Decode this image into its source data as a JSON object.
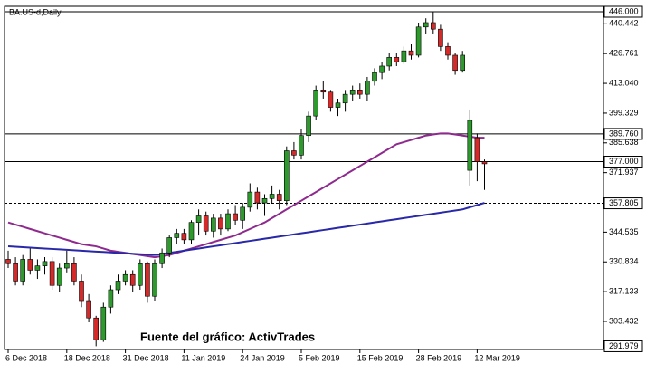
{
  "chart_data": {
    "type": "candlestick",
    "title": "BA.US-d,Daily",
    "annotation": "Fuente del gráfico: ActivTrades",
    "categories": [
      "6 Dec 2018",
      null,
      null,
      null,
      null,
      null,
      null,
      null,
      "18 Dec 2018",
      null,
      null,
      null,
      null,
      null,
      null,
      null,
      "31 Dec 2018",
      null,
      null,
      null,
      null,
      null,
      null,
      null,
      "11 Jan 2019",
      null,
      null,
      null,
      null,
      null,
      null,
      null,
      "24 Jan 2019",
      null,
      null,
      null,
      null,
      null,
      null,
      null,
      "5 Feb 2019",
      null,
      null,
      null,
      null,
      null,
      null,
      null,
      "15 Feb 2019",
      null,
      null,
      null,
      null,
      null,
      null,
      null,
      "28 Feb 2019",
      null,
      null,
      null,
      null,
      null,
      null,
      null,
      "12 Mar 2019",
      null
    ],
    "open": [
      332,
      330,
      322,
      332,
      327,
      329,
      331,
      320,
      328,
      330,
      322,
      313,
      305,
      295,
      310,
      318,
      322,
      325,
      320,
      330,
      315,
      330,
      335,
      342,
      344,
      341,
      349,
      352,
      345,
      351,
      346,
      353,
      350,
      356,
      363,
      358,
      360,
      362,
      359,
      382,
      380,
      389,
      398,
      410,
      409,
      402,
      404,
      408,
      410,
      408,
      414,
      418,
      421,
      425,
      423,
      428,
      426,
      439,
      441,
      438,
      430,
      426,
      419,
      373,
      388,
      377
    ],
    "high": [
      336,
      333,
      334,
      337,
      332,
      333,
      333,
      330,
      336,
      333,
      325,
      316,
      306,
      312,
      320,
      325,
      327,
      327,
      332,
      331,
      332,
      337,
      343,
      346,
      346,
      350,
      355,
      354,
      353,
      353,
      355,
      357,
      358,
      367,
      365,
      362,
      366,
      364,
      384,
      386,
      392,
      400,
      412,
      414,
      410,
      406,
      410,
      412,
      413,
      416,
      420,
      423,
      427,
      427,
      430,
      431,
      441,
      443,
      446,
      440,
      432,
      427,
      428,
      401,
      390,
      378
    ],
    "low": [
      328,
      320,
      320,
      325,
      323,
      325,
      318,
      317,
      326,
      320,
      310,
      303,
      292,
      294,
      307,
      316,
      320,
      317,
      318,
      312,
      313,
      328,
      333,
      339,
      339,
      339,
      343,
      343,
      342,
      343,
      345,
      348,
      346,
      354,
      355,
      352,
      358,
      355,
      357,
      378,
      378,
      386,
      396,
      406,
      400,
      398,
      400,
      405,
      406,
      405,
      412,
      415,
      419,
      421,
      422,
      424,
      425,
      436,
      436,
      428,
      424,
      417,
      418,
      366,
      368,
      364
    ],
    "close": [
      330,
      322,
      332,
      327,
      329,
      331,
      320,
      328,
      330,
      322,
      313,
      305,
      295,
      310,
      318,
      322,
      325,
      320,
      330,
      315,
      330,
      335,
      342,
      344,
      341,
      349,
      352,
      345,
      351,
      346,
      353,
      350,
      356,
      363,
      358,
      360,
      362,
      359,
      382,
      380,
      389,
      398,
      410,
      409,
      402,
      404,
      408,
      410,
      408,
      414,
      418,
      421,
      425,
      423,
      428,
      426,
      439,
      441,
      438,
      430,
      426,
      419,
      426,
      396,
      377,
      376
    ],
    "up_color": "#2e9a2e",
    "down_color": "#d42a2a",
    "lines": [
      {
        "color": "#8e2a8e",
        "values": [
          349,
          348,
          347,
          346,
          345,
          344,
          343,
          342,
          341,
          340,
          339,
          338.5,
          338,
          337,
          336,
          335.5,
          335,
          334.5,
          334,
          333.5,
          333,
          333.5,
          334,
          335,
          336,
          337,
          338,
          339,
          340,
          341,
          342,
          343,
          344.5,
          346,
          347.5,
          349,
          351,
          353,
          355,
          357,
          359,
          361,
          363,
          365,
          367,
          369,
          371,
          373,
          375,
          377,
          379,
          381,
          383,
          385,
          386,
          387,
          388,
          389,
          389.5,
          390,
          390,
          389.5,
          389,
          388.5,
          388,
          388
        ]
      },
      {
        "color": "#2828a8",
        "values": [
          338,
          337.8,
          337.6,
          337.4,
          337.2,
          337,
          336.8,
          336.6,
          336.4,
          336.2,
          336,
          335.8,
          335.6,
          335.4,
          335.2,
          335,
          334.8,
          334.6,
          334.4,
          334.2,
          334,
          334.5,
          335,
          335.5,
          336,
          336.5,
          337,
          337.5,
          338,
          338.5,
          339,
          339.5,
          340,
          340.5,
          341,
          341.5,
          342,
          342.5,
          343,
          343.5,
          344,
          344.5,
          345,
          345.5,
          346,
          346.5,
          347,
          347.5,
          348,
          348.5,
          349,
          349.5,
          350,
          350.5,
          351,
          351.5,
          352,
          352.5,
          353,
          353.5,
          354,
          354.5,
          355,
          356,
          357,
          358
        ]
      }
    ],
    "ylim": [
      290.5,
      448.5
    ],
    "yticks": [
      440.442,
      426.761,
      {
        "value": 413.04,
        "label": "413.040"
      },
      399.329,
      385.638,
      371.937,
      344.535,
      330.834,
      317.133,
      303.432
    ],
    "levels": [
      {
        "value": 446,
        "label": "446.000",
        "style": "solid"
      },
      {
        "value": 389.76,
        "label": "389.760",
        "style": "solid"
      },
      {
        "value": 377,
        "label": "377.000",
        "style": "solid"
      },
      {
        "value": 357.805,
        "label": "357.805",
        "style": "dashed"
      },
      {
        "value": 291.979,
        "label": "291.979",
        "style": "none"
      }
    ],
    "grid": false
  }
}
